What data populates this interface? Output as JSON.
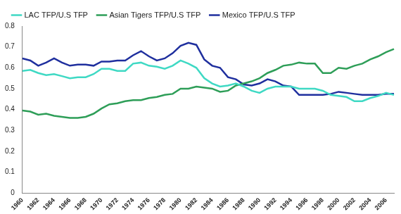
{
  "chart_data": {
    "type": "line",
    "categories": [
      1960,
      null,
      1962,
      null,
      1964,
      null,
      1966,
      null,
      1968,
      null,
      1970,
      null,
      1972,
      null,
      1974,
      null,
      1976,
      null,
      1978,
      null,
      1980,
      null,
      1982,
      null,
      1984,
      null,
      1986,
      null,
      1988,
      null,
      1990,
      null,
      1992,
      null,
      1994,
      null,
      1996,
      null,
      1998,
      null,
      2000,
      null,
      2002,
      null,
      2004,
      null,
      2006,
      null
    ],
    "series": [
      {
        "name": "LAC TFP/U.S TFP",
        "color": "#3fd9c4",
        "values": [
          0.585,
          0.59,
          0.575,
          0.565,
          0.57,
          0.56,
          0.55,
          0.555,
          0.555,
          0.57,
          0.595,
          0.595,
          0.585,
          0.585,
          0.62,
          0.625,
          0.61,
          0.605,
          0.595,
          0.61,
          0.635,
          0.62,
          0.6,
          0.55,
          0.525,
          0.51,
          0.515,
          0.525,
          0.51,
          0.49,
          0.48,
          0.5,
          0.51,
          0.51,
          0.51,
          0.5,
          0.5,
          0.5,
          0.49,
          0.47,
          0.465,
          0.46,
          0.44,
          0.44,
          0.455,
          0.465,
          0.48,
          0.47
        ]
      },
      {
        "name": "Asian Tigers TFP/U.S TFP",
        "color": "#2e9e58",
        "values": [
          0.395,
          0.39,
          0.375,
          0.38,
          0.37,
          0.365,
          0.36,
          0.36,
          0.365,
          0.38,
          0.405,
          0.425,
          0.43,
          0.44,
          0.445,
          0.445,
          0.455,
          0.46,
          0.47,
          0.475,
          0.5,
          0.5,
          0.51,
          0.505,
          0.5,
          0.485,
          0.49,
          0.515,
          0.525,
          0.535,
          0.55,
          0.575,
          0.59,
          0.61,
          0.615,
          0.625,
          0.62,
          0.62,
          0.575,
          0.575,
          0.6,
          0.595,
          0.61,
          0.62,
          0.64,
          0.655,
          0.675,
          0.69
        ]
      },
      {
        "name": "Mexico TFP/U.S TFP",
        "color": "#1f2f9e",
        "values": [
          0.645,
          0.635,
          0.61,
          0.625,
          0.645,
          0.625,
          0.61,
          0.615,
          0.615,
          0.61,
          0.63,
          0.63,
          0.635,
          0.635,
          0.66,
          0.68,
          0.655,
          0.635,
          0.645,
          0.67,
          0.705,
          0.72,
          0.71,
          0.64,
          0.61,
          0.6,
          0.555,
          0.545,
          0.52,
          0.515,
          0.525,
          0.545,
          0.535,
          0.515,
          0.51,
          0.47,
          0.47,
          0.47,
          0.47,
          0.475,
          0.485,
          0.48,
          0.475,
          0.47,
          0.47,
          0.47,
          0.475,
          0.475
        ]
      }
    ],
    "ylim": [
      0,
      0.8
    ],
    "yticks": [
      0,
      0.1,
      0.2,
      0.3,
      0.4,
      0.5,
      0.6,
      0.7,
      0.8
    ],
    "grid": false,
    "legend": "top"
  }
}
